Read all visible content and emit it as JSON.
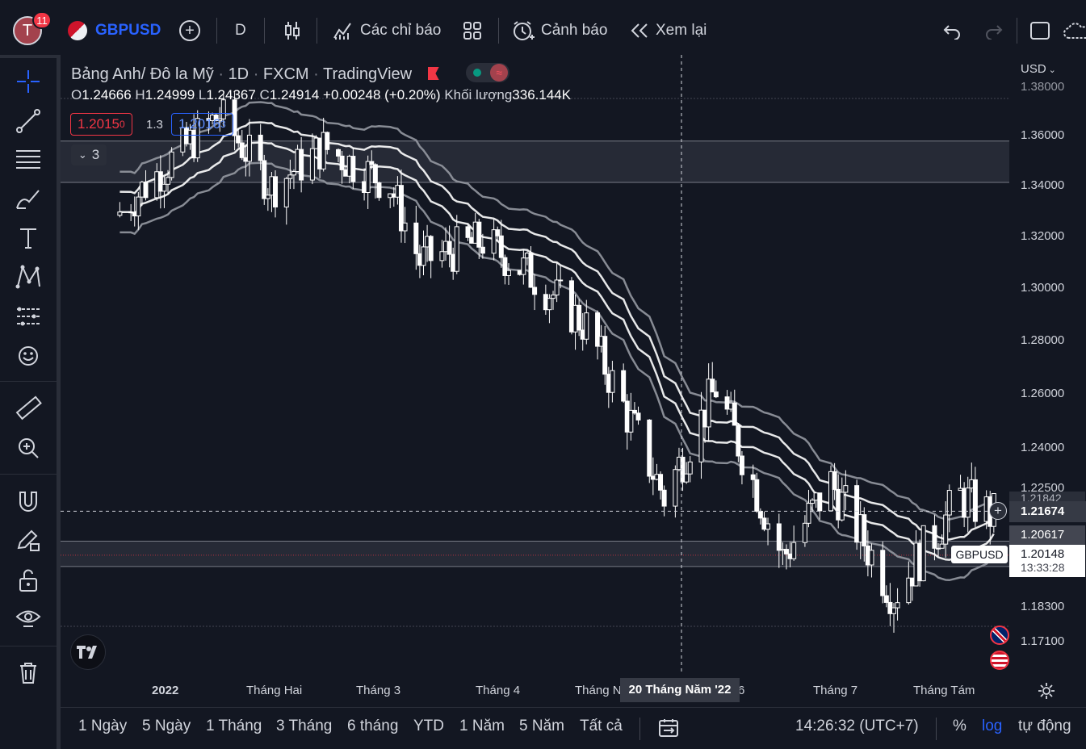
{
  "toolbar": {
    "avatar_letter": "T",
    "notification_count": "11",
    "symbol": "GBPUSD",
    "interval": "D",
    "indicators_label": "Các chỉ báo",
    "alerts_label": "Cảnh báo",
    "replay_label": "Xem lại"
  },
  "legend": {
    "title": "Bảng Anh/ Đô la Mỹ",
    "interval": "1D",
    "exchange": "FXCM",
    "source": "TradingView",
    "open_key": "O",
    "open": "1.24666",
    "high_key": "H",
    "high": "1.24999",
    "low_key": "L",
    "low": "1.24367",
    "close_key": "C",
    "close": "1.24914",
    "change": "+0.00248 (+0.20%)",
    "volume_label": "Khối lượng",
    "volume": "336.144K",
    "sell_price": "1.2015",
    "sell_price_sup": "0",
    "spread": "1.3",
    "buy_price": "1.2016",
    "buy_price_sup": "3",
    "collapse_count": "3"
  },
  "price_scale": {
    "currency": "USD",
    "ticks": [
      "1.38000",
      "1.36000",
      "1.34000",
      "1.32000",
      "1.30000",
      "1.28000",
      "1.26000",
      "1.24000",
      "1.22500",
      "1.18300",
      "1.17100"
    ],
    "crosshair_price": "1.21674",
    "ma_price": "1.20617",
    "last_price": "1.20148",
    "countdown": "13:33:28",
    "symbol_tag": "GBPUSD",
    "partial_tick": "1.21842"
  },
  "time_scale": {
    "labels": [
      "2022",
      "Tháng Hai",
      "Tháng 3",
      "Tháng 4",
      "Tháng N",
      "6",
      "Tháng 7",
      "Tháng Tám"
    ],
    "crosshair_date": "20 Tháng Năm '22"
  },
  "bottom": {
    "ranges": [
      "1 Ngày",
      "5 Ngày",
      "1 Tháng",
      "3 Tháng",
      "6 tháng",
      "YTD",
      "1 Năm",
      "5 Năm",
      "Tất cả"
    ],
    "clock": "14:26:32 (UTC+7)",
    "percent": "%",
    "log": "log",
    "auto": "tự động"
  },
  "colors": {
    "background": "#131722",
    "candle": "#ffffff",
    "ma_band": "#b2b5be",
    "log_accent": "#2962ff",
    "sell": "#f23645",
    "buy": "#2962ff"
  },
  "chart_data": {
    "type": "candlestick",
    "symbol": "GBPUSD",
    "interval": "1D",
    "x_range": [
      "2021-12",
      "2022-08"
    ],
    "ylim": [
      1.165,
      1.385
    ],
    "y_scale": "log",
    "bands_high": [
      1.3575,
      1.341
    ],
    "bands_low": [
      1.206,
      1.197
    ],
    "crosshair": {
      "date": "20 Tháng Năm '22",
      "price": 1.21674
    },
    "closes_path": [
      {
        "t": "2021-12-16",
        "c": 1.328
      },
      {
        "t": "2021-12-31",
        "c": 1.35
      },
      {
        "t": "2022-01-13",
        "c": 1.368
      },
      {
        "t": "2022-01-27",
        "c": 1.339
      },
      {
        "t": "2022-02-10",
        "c": 1.355
      },
      {
        "t": "2022-02-28",
        "c": 1.34
      },
      {
        "t": "2022-03-08",
        "c": 1.31
      },
      {
        "t": "2022-03-25",
        "c": 1.318
      },
      {
        "t": "2022-04-08",
        "c": 1.304
      },
      {
        "t": "2022-04-22",
        "c": 1.285
      },
      {
        "t": "2022-05-13",
        "c": 1.222
      },
      {
        "t": "2022-05-27",
        "c": 1.262
      },
      {
        "t": "2022-06-14",
        "c": 1.2
      },
      {
        "t": "2022-06-27",
        "c": 1.227
      },
      {
        "t": "2022-07-14",
        "c": 1.187
      },
      {
        "t": "2022-08-01",
        "c": 1.222
      },
      {
        "t": "2022-08-10",
        "c": 1.215
      }
    ]
  }
}
